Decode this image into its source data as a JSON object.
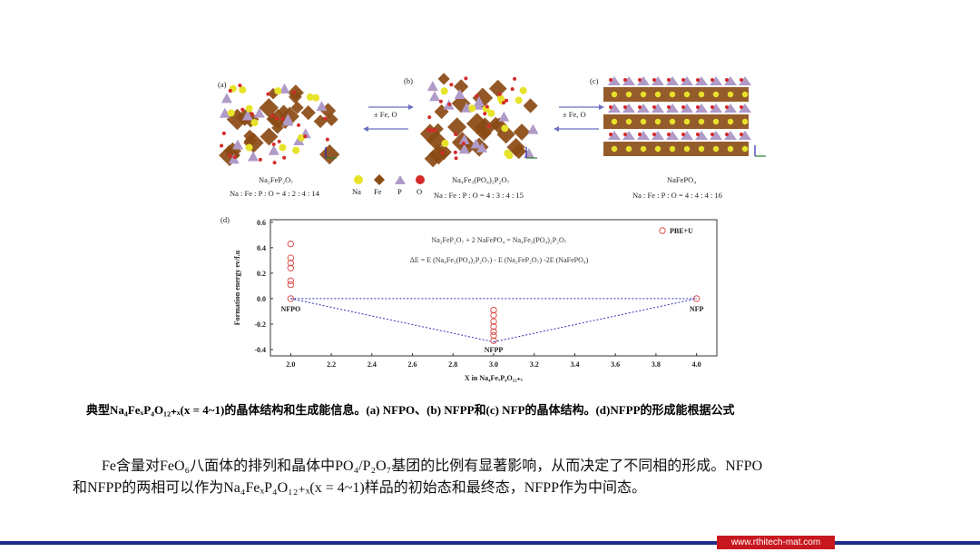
{
  "figure": {
    "panel_a_label": "(a)",
    "panel_b_label": "(b)",
    "panel_c_label": "(c)",
    "panel_d_label": "(d)",
    "arrow_ab_label": "Fe, O",
    "arrow_bc_label": "Fe, O",
    "compound_a": "Na₂FeP₂O₇",
    "ratio_a": "Na : Fe : P : O = 4 : 2 : 4 : 14",
    "compound_b": "Na₄Fe₃(PO₄)₂P₂O₇",
    "ratio_b": "Na : Fe : P : O = 4 : 3 : 4 : 15",
    "compound_c": "NaFePO₄",
    "ratio_c": "Na : Fe : P : O = 4 : 4 : 4 : 16",
    "legend_atoms": [
      "Na",
      "Fe",
      "P",
      "O"
    ],
    "atom_colors": {
      "Na": "#e7e22a",
      "Fe": "#8a4a14",
      "P": "#b09ac8",
      "O": "#d42a2a"
    },
    "equation_1": "Na₂FeP₂O₇ + 2 NaFePO₄ = Na₄Fe₃(PO₄)₂P₂O₇",
    "equation_2": "ΔE = E (Na₄Fe₃(PO₄)₂P₂O₇) - E (Na₂FeP₂O₇) -2E (NaFePO₄)"
  },
  "chart_data": {
    "type": "scatter",
    "title": "",
    "xlabel": "X in Na₄FeₓP₄O₁₂₊ₓ",
    "ylabel": "Formation energy ev/f.u",
    "xlim": [
      1.9,
      4.1
    ],
    "ylim": [
      -0.45,
      0.62
    ],
    "x_ticks": [
      "2.0",
      "2.2",
      "2.4",
      "2.6",
      "2.8",
      "3.0",
      "3.2",
      "3.4",
      "3.6",
      "3.8",
      "4.0"
    ],
    "y_ticks": [
      "0.6",
      "0.4",
      "0.2",
      "0.0",
      "-0.2",
      "-0.4"
    ],
    "series": [
      {
        "name": "PBE+U",
        "color": "#d9534f",
        "points": [
          {
            "x": 2.0,
            "y": 0.43
          },
          {
            "x": 2.0,
            "y": 0.32
          },
          {
            "x": 2.0,
            "y": 0.28
          },
          {
            "x": 2.0,
            "y": 0.24
          },
          {
            "x": 2.0,
            "y": 0.14
          },
          {
            "x": 2.0,
            "y": 0.11
          },
          {
            "x": 2.0,
            "y": 0.0
          },
          {
            "x": 3.0,
            "y": -0.09
          },
          {
            "x": 3.0,
            "y": -0.13
          },
          {
            "x": 3.0,
            "y": -0.18
          },
          {
            "x": 3.0,
            "y": -0.22
          },
          {
            "x": 3.0,
            "y": -0.26
          },
          {
            "x": 3.0,
            "y": -0.29
          },
          {
            "x": 3.0,
            "y": -0.33
          },
          {
            "x": 4.0,
            "y": 0.0
          }
        ]
      }
    ],
    "reference_lines": [
      {
        "from": [
          2.0,
          0.0
        ],
        "to": [
          4.0,
          0.0
        ],
        "style": "dotted",
        "color": "#2d2db8"
      },
      {
        "from": [
          2.0,
          0.0
        ],
        "to": [
          3.0,
          -0.34
        ],
        "style": "dotted",
        "color": "#2d2db8"
      },
      {
        "from": [
          3.0,
          -0.34
        ],
        "to": [
          4.0,
          0.0
        ],
        "style": "dotted",
        "color": "#2d2db8"
      }
    ],
    "annotations": [
      {
        "text": "NFPO",
        "x": 2.0,
        "y": -0.1
      },
      {
        "text": "NFPP",
        "x": 3.0,
        "y": -0.42
      },
      {
        "text": "NFP",
        "x": 4.0,
        "y": -0.1
      }
    ],
    "legend_position": "top-right"
  },
  "caption": "典型Na₄FeₓP₄O₁₂₊ₓ(x = 4~1)的晶体结构和生成能信息。(a) NFPO、(b) NFPP和(c) NFP的晶体结构。(d)NFPP的形成能根据公式",
  "paragraph_line1": "Fe含量对FeO₆八面体的排列和晶体中PO₄/P₂O₇基团的比例有显著影响，从而决定了不同相的形成。NFPO",
  "paragraph_line2": "和NFPP的两相可以作为Na₄FeₓP₄O₁₂₊ₓ(x = 4~1)样品的初始态和最终态，NFPP作为中间态。",
  "footer_url": "www.rthitech-mat.com"
}
